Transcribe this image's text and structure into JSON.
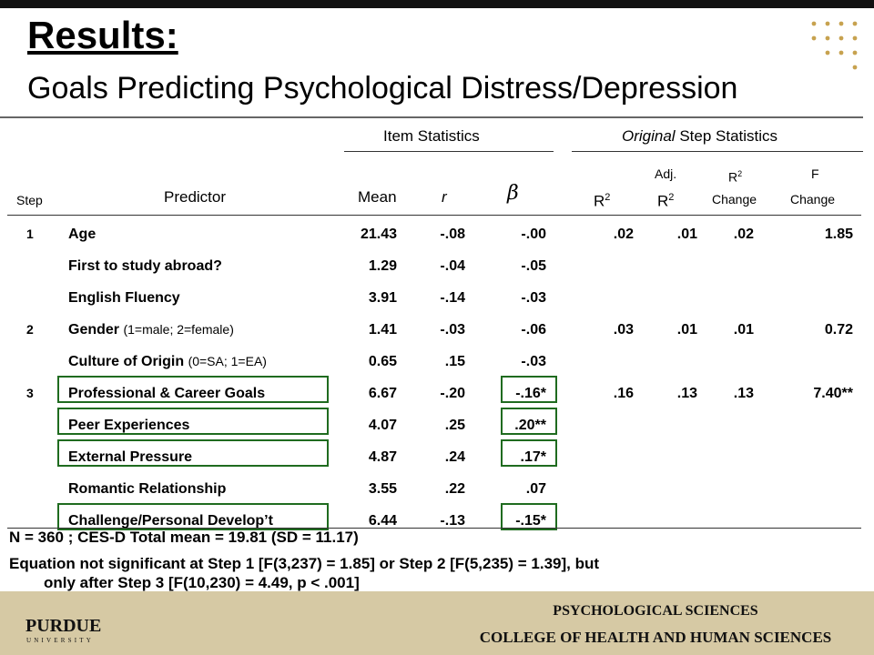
{
  "title": "Results:",
  "subtitle": "Goals Predicting Psychological Distress/Depression",
  "header": {
    "item_statistics": "Item Statistics",
    "original_italic": "Original",
    "step_statistics": " Step Statistics",
    "step": "Step",
    "predictor": "Predictor",
    "mean": "Mean",
    "r": "r",
    "beta": "β",
    "r2_base": "R",
    "r2_sup": "2",
    "adj": "Adj.",
    "change": "Change",
    "f": "F"
  },
  "rows": [
    {
      "step": "1",
      "predictor": "Age",
      "note": "",
      "mean": "21.43",
      "r": "-.08",
      "beta": "-.00",
      "r2": ".02",
      "adj_r2": ".01",
      "r2_change": ".02",
      "f_change": "1.85"
    },
    {
      "step": "",
      "predictor": "First to study abroad?",
      "note": "",
      "mean": "1.29",
      "r": "-.04",
      "beta": "-.05",
      "r2": "",
      "adj_r2": "",
      "r2_change": "",
      "f_change": ""
    },
    {
      "step": "",
      "predictor": "English Fluency",
      "note": "",
      "mean": "3.91",
      "r": "-.14",
      "beta": "-.03",
      "r2": "",
      "adj_r2": "",
      "r2_change": "",
      "f_change": ""
    },
    {
      "step": "2",
      "predictor": "Gender",
      "note": "(1=male; 2=female)",
      "mean": "1.41",
      "r": "-.03",
      "beta": "-.06",
      "r2": ".03",
      "adj_r2": ".01",
      "r2_change": ".01",
      "f_change": "0.72"
    },
    {
      "step": "",
      "predictor": "Culture of Origin",
      "note": "(0=SA; 1=EA)",
      "mean": "0.65",
      "r": ".15",
      "beta": "-.03",
      "r2": "",
      "adj_r2": "",
      "r2_change": "",
      "f_change": ""
    },
    {
      "step": "3",
      "predictor": "Professional & Career Goals",
      "note": "",
      "mean": "6.67",
      "r": "-.20",
      "beta": "-.16*",
      "r2": ".16",
      "adj_r2": ".13",
      "r2_change": ".13",
      "f_change": "7.40**"
    },
    {
      "step": "",
      "predictor": "Peer Experiences",
      "note": "",
      "mean": "4.07",
      "r": ".25",
      "beta": ".20**",
      "r2": "",
      "adj_r2": "",
      "r2_change": "",
      "f_change": ""
    },
    {
      "step": "",
      "predictor": "External Pressure",
      "note": "",
      "mean": "4.87",
      "r": ".24",
      "beta": ".17*",
      "r2": "",
      "adj_r2": "",
      "r2_change": "",
      "f_change": ""
    },
    {
      "step": "",
      "predictor": "Romantic Relationship",
      "note": "",
      "mean": "3.55",
      "r": ".22",
      "beta": ".07",
      "r2": "",
      "adj_r2": "",
      "r2_change": "",
      "f_change": ""
    },
    {
      "step": "",
      "predictor": "Challenge/Personal Develop’t",
      "note": "",
      "mean": "6.44",
      "r": "-.13",
      "beta": "-.15*",
      "r2": "",
      "adj_r2": "",
      "r2_change": "",
      "f_change": ""
    }
  ],
  "footnotes": {
    "line1": "N = 360 ; CES-D Total mean = 19.81 (SD = 11.17)",
    "line2": "Equation not significant at Step 1 [F(3,237) = 1.85] or Step 2 [F(5,235) = 1.39], but",
    "line3": "only after Step 3 [F(10,230) = 4.49, p < .001]"
  },
  "footer": {
    "logo_text": "PURDUE",
    "logo_subtext": "UNIVERSITY",
    "dept_line1": "PSYCHOLOGICAL SCIENCES",
    "dept_line2": "COLLEGE OF HEALTH AND HUMAN SCIENCES"
  },
  "colors": {
    "highlight_box": "#1f6b1f",
    "footer_bg": "#d6c9a4",
    "accent_dots": "#c7a24f"
  }
}
